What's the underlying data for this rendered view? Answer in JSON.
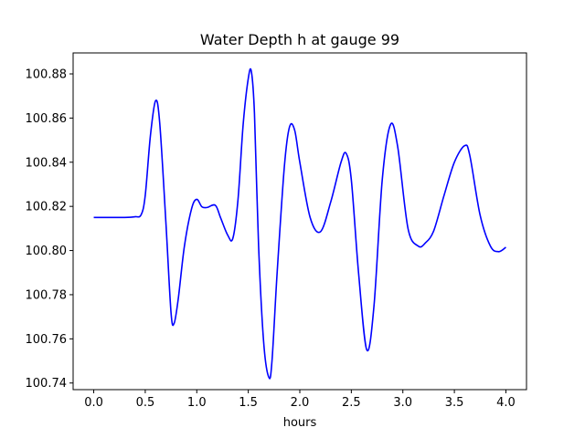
{
  "chart_data": {
    "type": "line",
    "title": "Water Depth h at gauge 99",
    "xlabel": "hours",
    "ylabel": "",
    "xlim": [
      -0.2,
      4.2
    ],
    "ylim": [
      100.737,
      100.8895
    ],
    "grid": false,
    "x_ticks": [
      0.0,
      0.5,
      1.0,
      1.5,
      2.0,
      2.5,
      3.0,
      3.5,
      4.0
    ],
    "x_tick_labels": [
      "0.0",
      "0.5",
      "1.0",
      "1.5",
      "2.0",
      "2.5",
      "3.0",
      "3.5",
      "4.0"
    ],
    "y_ticks": [
      100.74,
      100.76,
      100.78,
      100.8,
      100.82,
      100.84,
      100.86,
      100.88
    ],
    "y_tick_labels": [
      "100.74",
      "100.76",
      "100.78",
      "100.80",
      "100.82",
      "100.84",
      "100.86",
      "100.88"
    ],
    "series": [
      {
        "color": "#0000ff",
        "x": [
          0.0,
          0.3,
          0.4,
          0.46,
          0.5,
          0.55,
          0.6,
          0.64,
          0.7,
          0.75,
          0.78,
          0.82,
          0.88,
          0.95,
          1.0,
          1.05,
          1.1,
          1.18,
          1.23,
          1.3,
          1.35,
          1.4,
          1.45,
          1.5,
          1.53,
          1.56,
          1.6,
          1.65,
          1.7,
          1.73,
          1.78,
          1.85,
          1.9,
          1.95,
          2.0,
          2.1,
          2.2,
          2.3,
          2.4,
          2.45,
          2.5,
          2.57,
          2.65,
          2.72,
          2.8,
          2.88,
          2.95,
          3.05,
          3.15,
          3.22,
          3.3,
          3.4,
          3.5,
          3.6,
          3.65,
          3.75,
          3.85,
          3.93,
          4.0
        ],
        "y": [
          100.815,
          100.815,
          100.8153,
          100.8162,
          100.825,
          100.852,
          100.8678,
          100.858,
          100.813,
          100.772,
          100.767,
          100.778,
          100.802,
          100.819,
          100.8232,
          100.8198,
          100.8195,
          100.8205,
          100.815,
          100.807,
          100.8055,
          100.823,
          100.857,
          100.878,
          100.881,
          100.862,
          100.802,
          100.758,
          100.7425,
          100.75,
          100.79,
          100.838,
          100.856,
          100.8545,
          100.84,
          100.815,
          100.8085,
          100.822,
          100.84,
          100.844,
          100.832,
          100.79,
          100.755,
          100.775,
          100.832,
          100.857,
          100.847,
          100.81,
          100.802,
          100.8035,
          100.809,
          100.825,
          100.84,
          100.8475,
          100.843,
          100.816,
          100.802,
          100.7995,
          100.8015
        ]
      }
    ]
  }
}
